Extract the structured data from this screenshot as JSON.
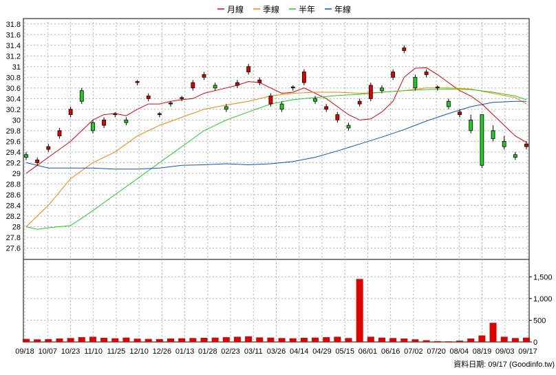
{
  "chart_data": {
    "type": "candlestick",
    "legend": [
      {
        "name": "月線",
        "color": "#e00000"
      },
      {
        "name": "季線",
        "color": "#ff7f00"
      },
      {
        "name": "半年",
        "color": "#22cc22"
      },
      {
        "name": "年線",
        "color": "#1050c0"
      }
    ],
    "price_axis": {
      "ylim": [
        27.4,
        31.9
      ],
      "ticks": [
        "31.8",
        "31.6",
        "31.4",
        "31.2",
        "31",
        "30.8",
        "30.6",
        "30.4",
        "30.2",
        "30",
        "29.8",
        "29.6",
        "29.4",
        "29.2",
        "29",
        "28.8",
        "28.6",
        "28.4",
        "28.2",
        "28",
        "27.8",
        "27.6"
      ],
      "tick_values": [
        31.8,
        31.6,
        31.4,
        31.2,
        31.0,
        30.8,
        30.6,
        30.4,
        30.2,
        30.0,
        29.8,
        29.6,
        29.4,
        29.2,
        29.0,
        28.8,
        28.6,
        28.4,
        28.2,
        28.0,
        27.8,
        27.6
      ]
    },
    "volume_axis": {
      "ylim": [
        0,
        1900
      ],
      "ticks": [
        "1,500",
        "1,000",
        "500",
        "0"
      ],
      "tick_values": [
        1500,
        1000,
        500,
        0
      ]
    },
    "x_ticks": [
      "09/18",
      "10/07",
      "10/23",
      "11/10",
      "11/25",
      "12/10",
      "12/26",
      "01/13",
      "01/28",
      "02/23",
      "03/11",
      "03/26",
      "04/14",
      "04/29",
      "05/15",
      "06/01",
      "06/16",
      "07/02",
      "07/20",
      "08/04",
      "08/19",
      "09/03",
      "09/17"
    ],
    "footer": "資料日期: 09/17  (Goodinfo.tw)",
    "ma_month": [
      [
        0,
        29.0
      ],
      [
        1,
        29.15
      ],
      [
        2,
        29.3
      ],
      [
        3,
        29.45
      ],
      [
        4,
        29.6
      ],
      [
        5,
        29.8
      ],
      [
        6,
        30.0
      ],
      [
        7,
        30.1
      ],
      [
        8,
        30.12
      ],
      [
        9,
        30.08
      ],
      [
        10,
        30.2
      ],
      [
        11,
        30.3
      ],
      [
        12,
        30.3
      ],
      [
        13,
        30.35
      ],
      [
        14,
        30.38
      ],
      [
        15,
        30.4
      ],
      [
        16,
        30.5
      ],
      [
        17,
        30.55
      ],
      [
        18,
        30.6
      ],
      [
        19,
        30.65
      ],
      [
        20,
        30.72
      ],
      [
        21,
        30.7
      ],
      [
        22,
        30.6
      ],
      [
        23,
        30.5
      ],
      [
        24,
        30.52
      ],
      [
        25,
        30.6
      ],
      [
        26,
        30.5
      ],
      [
        27,
        30.4
      ],
      [
        28,
        30.25
      ],
      [
        29,
        30.1
      ],
      [
        30,
        30.0
      ],
      [
        31,
        30.02
      ],
      [
        32,
        30.15
      ],
      [
        33,
        30.35
      ],
      [
        34,
        30.8
      ],
      [
        35,
        30.97
      ],
      [
        36,
        30.98
      ],
      [
        37,
        30.85
      ],
      [
        38,
        30.7
      ],
      [
        39,
        30.55
      ],
      [
        40,
        30.45
      ],
      [
        41,
        30.3
      ],
      [
        42,
        30.1
      ],
      [
        43,
        29.9
      ],
      [
        44,
        29.7
      ],
      [
        45,
        29.58
      ]
    ],
    "ma_quarter": [
      [
        0,
        28.0
      ],
      [
        2,
        28.4
      ],
      [
        4,
        28.9
      ],
      [
        6,
        29.2
      ],
      [
        8,
        29.4
      ],
      [
        10,
        29.7
      ],
      [
        12,
        29.9
      ],
      [
        14,
        30.05
      ],
      [
        16,
        30.2
      ],
      [
        18,
        30.28
      ],
      [
        20,
        30.35
      ],
      [
        22,
        30.45
      ],
      [
        24,
        30.5
      ],
      [
        26,
        30.52
      ],
      [
        28,
        30.52
      ],
      [
        30,
        30.5
      ],
      [
        32,
        30.52
      ],
      [
        34,
        30.55
      ],
      [
        36,
        30.6
      ],
      [
        38,
        30.6
      ],
      [
        40,
        30.58
      ],
      [
        42,
        30.5
      ],
      [
        44,
        30.42
      ],
      [
        45,
        30.3
      ]
    ],
    "ma_half": [
      [
        0,
        28.0
      ],
      [
        1,
        27.95
      ],
      [
        2,
        27.98
      ],
      [
        4,
        28.02
      ],
      [
        6,
        28.3
      ],
      [
        8,
        28.6
      ],
      [
        10,
        28.9
      ],
      [
        12,
        29.2
      ],
      [
        14,
        29.5
      ],
      [
        16,
        29.8
      ],
      [
        18,
        30.0
      ],
      [
        20,
        30.15
      ],
      [
        22,
        30.3
      ],
      [
        24,
        30.38
      ],
      [
        26,
        30.42
      ],
      [
        28,
        30.46
      ],
      [
        30,
        30.48
      ],
      [
        32,
        30.52
      ],
      [
        34,
        30.55
      ],
      [
        36,
        30.57
      ],
      [
        38,
        30.58
      ],
      [
        40,
        30.57
      ],
      [
        42,
        30.52
      ],
      [
        44,
        30.45
      ],
      [
        45,
        30.38
      ]
    ],
    "ma_year": [
      [
        0,
        29.2
      ],
      [
        2,
        29.1
      ],
      [
        4,
        29.1
      ],
      [
        6,
        29.1
      ],
      [
        8,
        29.08
      ],
      [
        10,
        29.08
      ],
      [
        12,
        29.1
      ],
      [
        14,
        29.15
      ],
      [
        16,
        29.16
      ],
      [
        18,
        29.18
      ],
      [
        20,
        29.16
      ],
      [
        22,
        29.18
      ],
      [
        24,
        29.22
      ],
      [
        26,
        29.3
      ],
      [
        28,
        29.42
      ],
      [
        30,
        29.55
      ],
      [
        32,
        29.68
      ],
      [
        34,
        29.82
      ],
      [
        36,
        29.98
      ],
      [
        38,
        30.12
      ],
      [
        40,
        30.25
      ],
      [
        42,
        30.33
      ],
      [
        44,
        30.35
      ],
      [
        45,
        30.35
      ]
    ],
    "candles": [
      [
        0,
        29.35,
        29.3,
        29.4,
        29.25
      ],
      [
        1,
        29.2,
        29.25,
        29.3,
        29.15
      ],
      [
        2,
        29.45,
        29.5,
        29.55,
        29.4
      ],
      [
        3,
        29.7,
        29.8,
        29.85,
        29.65
      ],
      [
        4,
        30.1,
        30.2,
        30.25,
        30.05
      ],
      [
        5,
        30.55,
        30.35,
        30.6,
        30.3
      ],
      [
        6,
        29.95,
        29.8,
        30.0,
        29.75
      ],
      [
        7,
        29.9,
        30.0,
        30.05,
        29.85
      ],
      [
        8,
        30.1,
        30.12,
        30.15,
        30.05
      ],
      [
        9,
        30.0,
        29.95,
        30.05,
        29.9
      ],
      [
        10,
        30.7,
        30.72,
        30.75,
        30.65
      ],
      [
        11,
        30.4,
        30.45,
        30.5,
        30.35
      ],
      [
        12,
        30.1,
        30.12,
        30.15,
        30.05
      ],
      [
        13,
        30.3,
        30.32,
        30.35,
        30.25
      ],
      [
        14,
        30.4,
        30.42,
        30.45,
        30.35
      ],
      [
        15,
        30.6,
        30.7,
        30.75,
        30.55
      ],
      [
        16,
        30.8,
        30.85,
        30.9,
        30.75
      ],
      [
        17,
        30.65,
        30.6,
        30.7,
        30.55
      ],
      [
        18,
        30.25,
        30.2,
        30.3,
        30.15
      ],
      [
        19,
        30.65,
        30.7,
        30.75,
        30.6
      ],
      [
        20,
        30.9,
        31.0,
        31.05,
        30.85
      ],
      [
        21,
        30.7,
        30.75,
        30.8,
        30.65
      ],
      [
        22,
        30.3,
        30.45,
        30.5,
        30.25
      ],
      [
        23,
        30.3,
        30.2,
        30.35,
        30.15
      ],
      [
        24,
        30.6,
        30.62,
        30.65,
        30.55
      ],
      [
        25,
        30.7,
        30.9,
        30.95,
        30.65
      ],
      [
        26,
        30.4,
        30.35,
        30.45,
        30.3
      ],
      [
        27,
        30.2,
        30.25,
        30.3,
        30.15
      ],
      [
        28,
        30.0,
        30.1,
        30.15,
        29.95
      ],
      [
        29,
        29.9,
        29.85,
        29.95,
        29.8
      ],
      [
        30,
        30.3,
        30.35,
        30.4,
        30.25
      ],
      [
        31,
        30.4,
        30.65,
        30.7,
        30.35
      ],
      [
        32,
        30.6,
        30.55,
        30.65,
        30.5
      ],
      [
        33,
        30.8,
        30.9,
        30.95,
        30.75
      ],
      [
        34,
        31.3,
        31.35,
        31.4,
        31.25
      ],
      [
        35,
        30.8,
        30.6,
        30.85,
        30.55
      ],
      [
        36,
        30.85,
        30.9,
        30.95,
        30.8
      ],
      [
        37,
        30.6,
        30.62,
        30.65,
        30.55
      ],
      [
        38,
        30.35,
        30.25,
        30.4,
        30.2
      ],
      [
        39,
        30.1,
        30.15,
        30.2,
        30.05
      ],
      [
        40,
        30.0,
        29.8,
        30.1,
        29.75
      ],
      [
        41,
        30.1,
        29.15,
        30.1,
        29.1
      ],
      [
        42,
        29.8,
        29.65,
        29.9,
        29.6
      ],
      [
        43,
        29.6,
        29.5,
        29.7,
        29.45
      ],
      [
        44,
        29.35,
        29.3,
        29.4,
        29.25
      ],
      [
        45,
        29.5,
        29.55,
        29.6,
        29.45
      ]
    ],
    "volume": [
      [
        0,
        70
      ],
      [
        1,
        60
      ],
      [
        2,
        65
      ],
      [
        3,
        80
      ],
      [
        4,
        90
      ],
      [
        5,
        110
      ],
      [
        6,
        120
      ],
      [
        7,
        95
      ],
      [
        8,
        85
      ],
      [
        9,
        100
      ],
      [
        10,
        75
      ],
      [
        11,
        70
      ],
      [
        12,
        65
      ],
      [
        13,
        80
      ],
      [
        14,
        85
      ],
      [
        15,
        90
      ],
      [
        16,
        95
      ],
      [
        17,
        100
      ],
      [
        18,
        110
      ],
      [
        19,
        120
      ],
      [
        20,
        130
      ],
      [
        21,
        105
      ],
      [
        22,
        100
      ],
      [
        23,
        90
      ],
      [
        24,
        85
      ],
      [
        25,
        95
      ],
      [
        26,
        100
      ],
      [
        27,
        110
      ],
      [
        28,
        120
      ],
      [
        29,
        90
      ],
      [
        30,
        1450
      ],
      [
        31,
        120
      ],
      [
        32,
        100
      ],
      [
        33,
        90
      ],
      [
        34,
        80
      ],
      [
        35,
        60
      ],
      [
        36,
        40
      ],
      [
        37,
        20
      ],
      [
        38,
        15
      ],
      [
        39,
        30
      ],
      [
        40,
        80
      ],
      [
        41,
        150
      ],
      [
        42,
        440
      ],
      [
        43,
        120
      ],
      [
        44,
        90
      ],
      [
        45,
        100
      ]
    ]
  }
}
